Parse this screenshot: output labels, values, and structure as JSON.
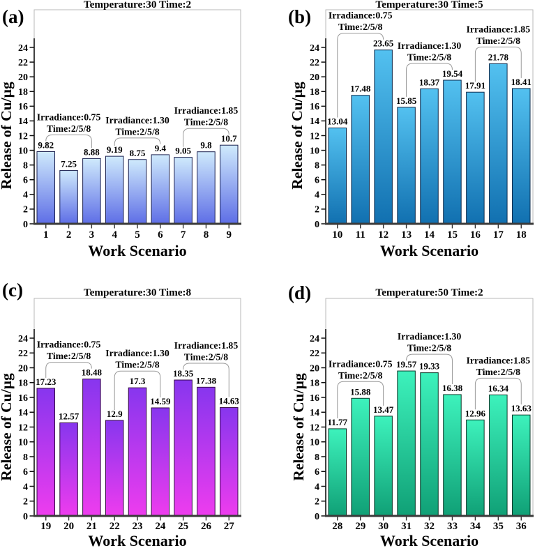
{
  "figure": {
    "ylabel": "Release of Cu/µg",
    "xlabel": "Work Scenario",
    "frame_color": "#b9b9b9",
    "axis_color": "#111111",
    "xaxis_color": "#3a3a3a",
    "bracket_color": "#9a9a9a"
  },
  "chart_data": [
    {
      "type": "bar",
      "panel_label": "(a)",
      "title": "Temperature:30 Time:2",
      "xlabel": "Work Scenario",
      "ylabel": "Release of Cu/µg",
      "categories": [
        "1",
        "2",
        "3",
        "4",
        "5",
        "6",
        "7",
        "8",
        "9"
      ],
      "values": [
        9.82,
        7.25,
        8.88,
        9.19,
        8.75,
        9.4,
        9.05,
        9.8,
        10.7
      ],
      "value_labels": [
        "9.82",
        "7.25",
        "8.88",
        "9.19",
        "8.75",
        "9.4",
        "9.05",
        "9.8",
        "10.7"
      ],
      "yticks": [
        0,
        2,
        4,
        6,
        8,
        10,
        12,
        14,
        16,
        18,
        20,
        22,
        24
      ],
      "ylim": [
        0,
        29
      ],
      "grid": "off",
      "bar_gradient": {
        "top": "#cfeafc",
        "bottom": "#5e6ee6"
      },
      "bar_outline": "#1b2150",
      "annotations": [
        {
          "line1": "Irradiance:0.75",
          "line2": "Time:2/5/8",
          "from_category": "1",
          "to_category": "3"
        },
        {
          "line1": "Irradiance:1.30",
          "line2": "Time:2/5/8",
          "from_category": "4",
          "to_category": "6"
        },
        {
          "line1": "Irradiance:1.85",
          "line2": "Time:2/5/8",
          "from_category": "7",
          "to_category": "9"
        }
      ]
    },
    {
      "type": "bar",
      "panel_label": "(b)",
      "title": "Temperature:30 Time:5",
      "xlabel": "Work Scenario",
      "ylabel": "Release of Cu/µg",
      "categories": [
        "10",
        "11",
        "12",
        "13",
        "14",
        "15",
        "16",
        "17",
        "18"
      ],
      "values": [
        13.04,
        17.48,
        23.65,
        15.85,
        18.37,
        19.54,
        17.91,
        21.78,
        18.41
      ],
      "value_labels": [
        "13.04",
        "17.48",
        "23.65",
        "15.85",
        "18.37",
        "19.54",
        "17.91",
        "21.78",
        "18.41"
      ],
      "yticks": [
        0,
        2,
        4,
        6,
        8,
        10,
        12,
        14,
        16,
        18,
        20,
        22,
        24
      ],
      "ylim": [
        0,
        29
      ],
      "grid": "off",
      "bar_gradient": {
        "top": "#53c1f0",
        "bottom": "#1170b0"
      },
      "bar_outline": "#0e2c4e",
      "annotations": [
        {
          "line1": "Irradiance:0.75",
          "line2": "Time:2/5/8",
          "from_category": "10",
          "to_category": "12"
        },
        {
          "line1": "Irradiance:1.30",
          "line2": "Time:2/5/8",
          "from_category": "13",
          "to_category": "15"
        },
        {
          "line1": "Irradiance:1.85",
          "line2": "Time:2/5/8",
          "from_category": "16",
          "to_category": "18"
        }
      ]
    },
    {
      "type": "bar",
      "panel_label": "(c)",
      "title": "Temperature:30 Time:8",
      "xlabel": "Work Scenario",
      "ylabel": "Release of Cu/µg",
      "categories": [
        "19",
        "20",
        "21",
        "22",
        "23",
        "24",
        "25",
        "26",
        "27"
      ],
      "values": [
        17.23,
        12.57,
        18.48,
        12.9,
        17.3,
        14.59,
        18.35,
        17.38,
        14.63
      ],
      "value_labels": [
        "17.23",
        "12.57",
        "18.48",
        "12.9",
        "17.3",
        "14.59",
        "18.35",
        "17.38",
        "14.63"
      ],
      "yticks": [
        0,
        2,
        4,
        6,
        8,
        10,
        12,
        14,
        16,
        18,
        20,
        22,
        24
      ],
      "ylim": [
        0,
        29
      ],
      "grid": "off",
      "bar_gradient": {
        "top": "#8736ee",
        "bottom": "#ee3cee"
      },
      "bar_outline": "#350c44",
      "annotations": [
        {
          "line1": "Irradiance:0.75",
          "line2": "Time:2/5/8",
          "from_category": "19",
          "to_category": "21"
        },
        {
          "line1": "Irradiance:1.30",
          "line2": "Time:2/5/8",
          "from_category": "22",
          "to_category": "24"
        },
        {
          "line1": "Irradiance:1.85",
          "line2": "Time:2/5/8",
          "from_category": "25",
          "to_category": "27"
        }
      ]
    },
    {
      "type": "bar",
      "panel_label": "(d)",
      "title": "Temperature:50 Time:2",
      "xlabel": "Work Scenario",
      "ylabel": "Release of Cu/µg",
      "categories": [
        "28",
        "29",
        "30",
        "31",
        "32",
        "33",
        "34",
        "35",
        "36"
      ],
      "values": [
        11.77,
        15.88,
        13.47,
        19.57,
        19.33,
        16.38,
        12.96,
        16.34,
        13.63
      ],
      "value_labels": [
        "11.77",
        "15.88",
        "13.47",
        "19.57",
        "19.33",
        "16.38",
        "12.96",
        "16.34",
        "13.63"
      ],
      "yticks": [
        0,
        2,
        4,
        6,
        8,
        10,
        12,
        14,
        16,
        18,
        20,
        22,
        24
      ],
      "ylim": [
        0,
        29
      ],
      "grid": "off",
      "bar_gradient": {
        "top": "#3df2bc",
        "bottom": "#10a076"
      },
      "bar_outline": "#093828",
      "annotations": [
        {
          "line1": "Irradiance:0.75",
          "line2": "Time:2/5/8",
          "from_category": "28",
          "to_category": "30"
        },
        {
          "line1": "Irradiance:1.30",
          "line2": "Time:2/5/8",
          "from_category": "31",
          "to_category": "33"
        },
        {
          "line1": "Irradiance:1.85",
          "line2": "Time:2/5/8",
          "from_category": "34",
          "to_category": "36"
        }
      ]
    }
  ]
}
